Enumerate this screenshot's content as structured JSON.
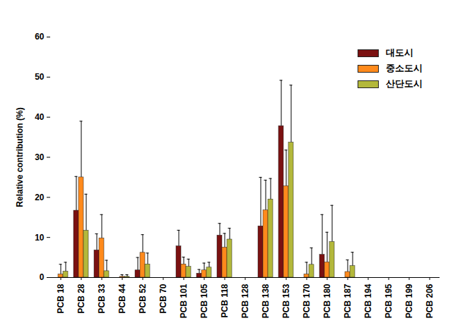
{
  "chart_data": {
    "type": "bar",
    "y_label": "Relative contribution (%)",
    "categories": [
      "PCB 18",
      "PCB 28",
      "PCB 33",
      "PCB 44",
      "PCB 52",
      "PCB 70",
      "PCB 101",
      "PCB 105",
      "PCB 118",
      "PCB 128",
      "PCB 138",
      "PCB 153",
      "PCB 170",
      "PCB 180",
      "PCB 187",
      "PCB 194",
      "PCB 195",
      "PCB 199",
      "PCB 206"
    ],
    "series": [
      {
        "name": "대도시",
        "color": "#7b1111",
        "values": [
          0,
          16.7,
          6.8,
          0,
          1.8,
          0,
          7.8,
          1.0,
          10.5,
          0,
          12.8,
          37.8,
          0,
          5.7,
          0,
          0,
          0,
          0,
          0
        ],
        "errors": [
          0,
          8.5,
          4.1,
          0,
          3.2,
          0,
          4.0,
          1.0,
          3.0,
          0,
          12.2,
          11.4,
          0,
          10.0,
          0,
          0,
          0,
          0,
          0
        ]
      },
      {
        "name": "중소도시",
        "color": "#ff8a1c",
        "values": [
          0.8,
          25.0,
          9.8,
          0.2,
          6.2,
          0,
          3.3,
          1.8,
          7.5,
          0,
          16.8,
          22.8,
          0.8,
          3.8,
          1.4,
          0,
          0,
          0,
          0
        ],
        "errors": [
          2.5,
          14.0,
          5.9,
          0.5,
          4.5,
          0,
          1.8,
          1.8,
          3.5,
          0,
          7.5,
          9.0,
          3.0,
          7.5,
          3.0,
          0,
          0,
          0,
          0
        ]
      },
      {
        "name": "산단도시",
        "color": "#b3b83b",
        "values": [
          1.5,
          11.7,
          1.6,
          0.2,
          3.3,
          0,
          2.7,
          2.5,
          9.5,
          0,
          19.5,
          33.7,
          3.2,
          8.9,
          2.9,
          0,
          0,
          0,
          0
        ],
        "errors": [
          2.3,
          9.1,
          2.7,
          0.5,
          2.8,
          0,
          1.9,
          1.3,
          2.8,
          0,
          5.2,
          14.3,
          4.2,
          9.1,
          3.4,
          0,
          0,
          0,
          0
        ]
      }
    ],
    "ylim": [
      0,
      60
    ],
    "yticks": [
      0,
      10,
      20,
      30,
      40,
      50,
      60
    ],
    "grid": false,
    "legend": "top-right"
  }
}
